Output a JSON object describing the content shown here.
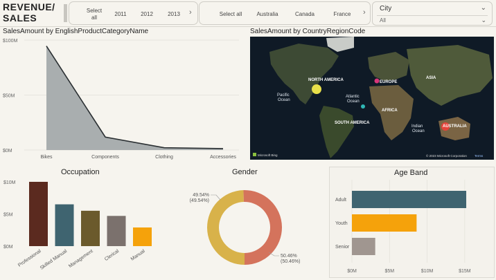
{
  "report_title": "REVENUE/SALES",
  "year_slicer": {
    "items": [
      "Select all",
      "2011",
      "2012",
      "2013"
    ],
    "next_icon": "chevron-right-icon"
  },
  "country_slicer": {
    "items": [
      "Select all",
      "Australia",
      "Canada",
      "France"
    ],
    "next_icon": "chevron-right-icon"
  },
  "city_dropdown": {
    "label": "City",
    "value": "All"
  },
  "category_chart": {
    "title": "SalesAmount by EnglishProductCategoryName",
    "chart_data": {
      "type": "area",
      "categories": [
        "Bikes",
        "Components",
        "Clothing",
        "Accessories"
      ],
      "values": [
        94.6,
        11.8,
        2.1,
        1.3
      ],
      "unit": "M",
      "y_ticks": [
        "$100M",
        "$50M",
        "$0M"
      ],
      "ylim": [
        0,
        100
      ],
      "color": "#a9aeaf"
    }
  },
  "map_visual": {
    "title": "SalesAmount by CountryRegionCode",
    "labels": {
      "north_america": "NORTH AMERICA",
      "europe": "EUROPE",
      "asia": "ASIA",
      "pacific": "Pacific\nOcean",
      "atlantic": "Atlantic\nOcean",
      "africa": "AFRICA",
      "south_america": "SOUTH AMERICA",
      "indian": "Indian\nOcean",
      "australia": "AUSTRALIA"
    },
    "attribution_left": "Microsoft Bing",
    "attribution_right": "© 2023 Microsoft Corporation",
    "terms": "Terms",
    "bubble_colors": {
      "na": "#e8e04a",
      "europe": "#d9367a",
      "caribbean": "#2fb7b5",
      "australia": "#e5443a"
    }
  },
  "occupation_chart": {
    "title": "Occupation",
    "chart_data": {
      "type": "bar",
      "categories": [
        "Professional",
        "Skilled Manual",
        "Management",
        "Clerical",
        "Manual"
      ],
      "values": [
        10.0,
        6.5,
        5.5,
        4.7,
        2.9
      ],
      "colors": [
        "#5b2a1f",
        "#3f6470",
        "#6b5a2c",
        "#7b716d",
        "#f5a20b"
      ],
      "y_ticks": [
        "$10M",
        "$5M",
        "$0M"
      ],
      "ylim": [
        0,
        10
      ]
    }
  },
  "gender_chart": {
    "title": "Gender",
    "chart_data": {
      "type": "pie",
      "slices": [
        {
          "value": 49.54,
          "label": "49.54%",
          "sublabel": "(49.54%)",
          "color": "#d8b24a"
        },
        {
          "value": 50.46,
          "label": "50.46%",
          "sublabel": "(50.46%)",
          "color": "#d4735c"
        }
      ]
    }
  },
  "ageband_chart": {
    "title": "Age Band",
    "chart_data": {
      "type": "bar",
      "orientation": "horizontal",
      "categories": [
        "Adult",
        "Youth",
        "Senior"
      ],
      "values": [
        15.2,
        8.6,
        3.1
      ],
      "colors": [
        "#3f6470",
        "#f5a20b",
        "#a09690"
      ],
      "x_ticks": [
        "$0M",
        "$5M",
        "$10M",
        "$15M"
      ],
      "xlim": [
        0,
        17.5
      ]
    }
  }
}
